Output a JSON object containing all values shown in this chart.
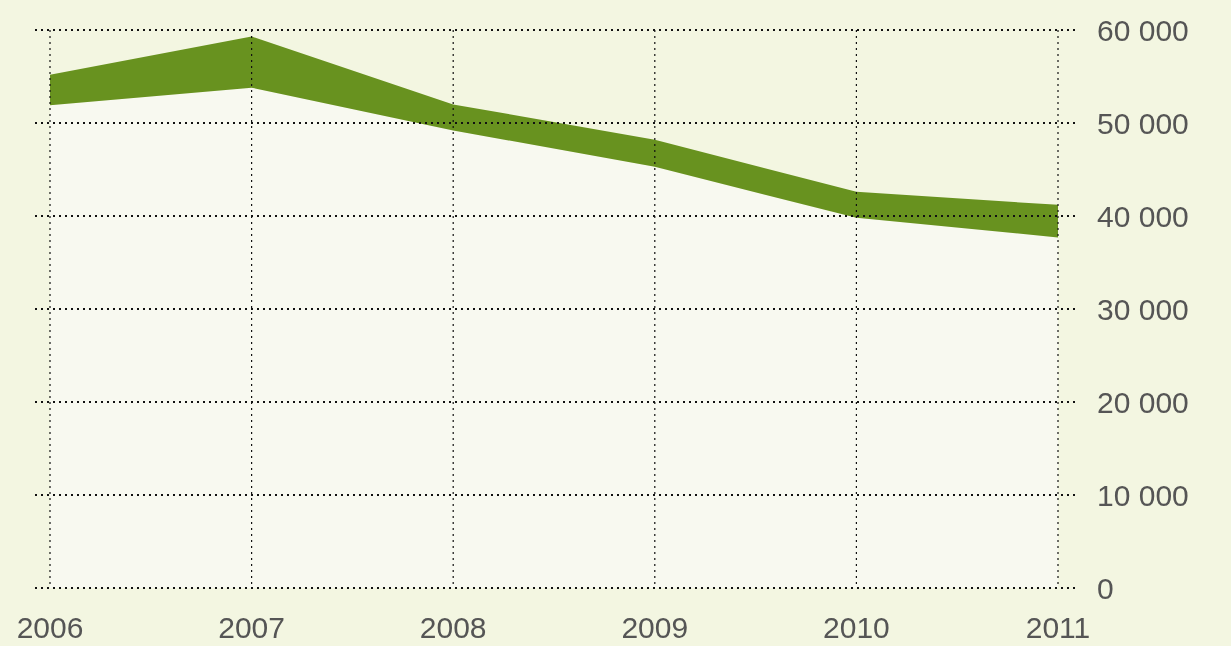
{
  "chart_data": {
    "type": "area",
    "stacked": true,
    "categories": [
      "2006",
      "2007",
      "2008",
      "2009",
      "2010",
      "2011"
    ],
    "series": [
      {
        "color": "#f8f9f0",
        "values": [
          51900,
          53800,
          49200,
          45300,
          39800,
          37700
        ]
      },
      {
        "color": "#68921f",
        "values": [
          3300,
          5500,
          2800,
          2900,
          2800,
          3500
        ]
      }
    ],
    "ylim": [
      0,
      60000
    ],
    "yticks": [
      {
        "value": 0,
        "label": "0"
      },
      {
        "value": 10000,
        "label": "10 000"
      },
      {
        "value": 20000,
        "label": "20 000"
      },
      {
        "value": 30000,
        "label": "30 000"
      },
      {
        "value": 40000,
        "label": "40 000"
      },
      {
        "value": 50000,
        "label": "50 000"
      },
      {
        "value": 60000,
        "label": "60 000"
      }
    ],
    "grid": true,
    "line_style": "dotted"
  }
}
